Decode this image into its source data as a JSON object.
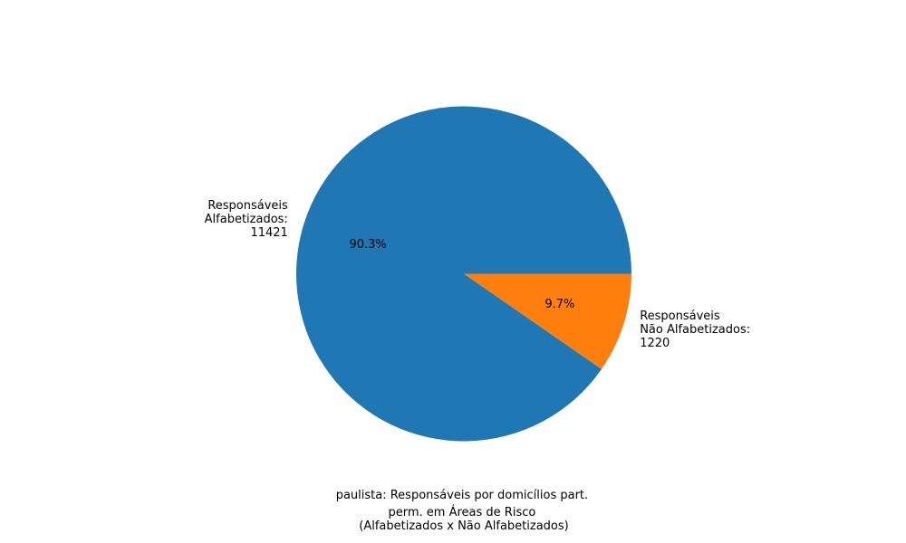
{
  "chart_data": {
    "type": "pie",
    "slices": [
      {
        "value": 11421,
        "percent_label": "90.3%",
        "label_lines": [
          "Responsáveis",
          "Alfabetizados:",
          "11421"
        ],
        "color": "#1f77b4"
      },
      {
        "value": 1220,
        "percent_label": "9.7%",
        "label_lines": [
          "Responsáveis",
          "Não Alfabetizados:",
          "1220"
        ],
        "color": "#ff7f0e"
      }
    ],
    "title_lines": [
      "paulista: Responsáveis por domicílios part.",
      "perm. em Áreas de Risco",
      "(Alfabetizados x Não Alfabetizados)"
    ],
    "start_angle_deg": 0,
    "direction": "counterclockwise"
  }
}
